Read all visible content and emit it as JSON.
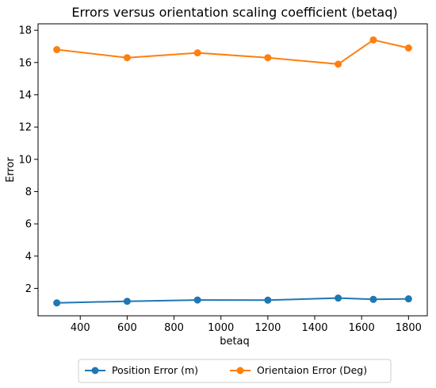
{
  "chart_data": {
    "type": "line",
    "title": "Errors versus orientation scaling coefficient (betaq)",
    "xlabel": "betaq",
    "ylabel": "Error",
    "x": [
      300,
      600,
      900,
      1200,
      1500,
      1650,
      1800
    ],
    "xlim": [
      220,
      1880
    ],
    "ylim": [
      0.3,
      18.4
    ],
    "xticks": [
      400,
      600,
      800,
      1000,
      1200,
      1400,
      1600,
      1800
    ],
    "yticks": [
      2,
      4,
      6,
      8,
      10,
      12,
      14,
      16,
      18
    ],
    "grid": false,
    "legend_position": "bottom-center",
    "series": [
      {
        "name": "Position Error (m)",
        "color": "#1f77b4",
        "values": [
          1.1,
          1.2,
          1.28,
          1.27,
          1.4,
          1.32,
          1.35
        ]
      },
      {
        "name": "Orientaion Error (Deg)",
        "color": "#ff7f0e",
        "values": [
          16.8,
          16.3,
          16.6,
          16.3,
          15.9,
          17.4,
          16.9
        ]
      }
    ]
  }
}
